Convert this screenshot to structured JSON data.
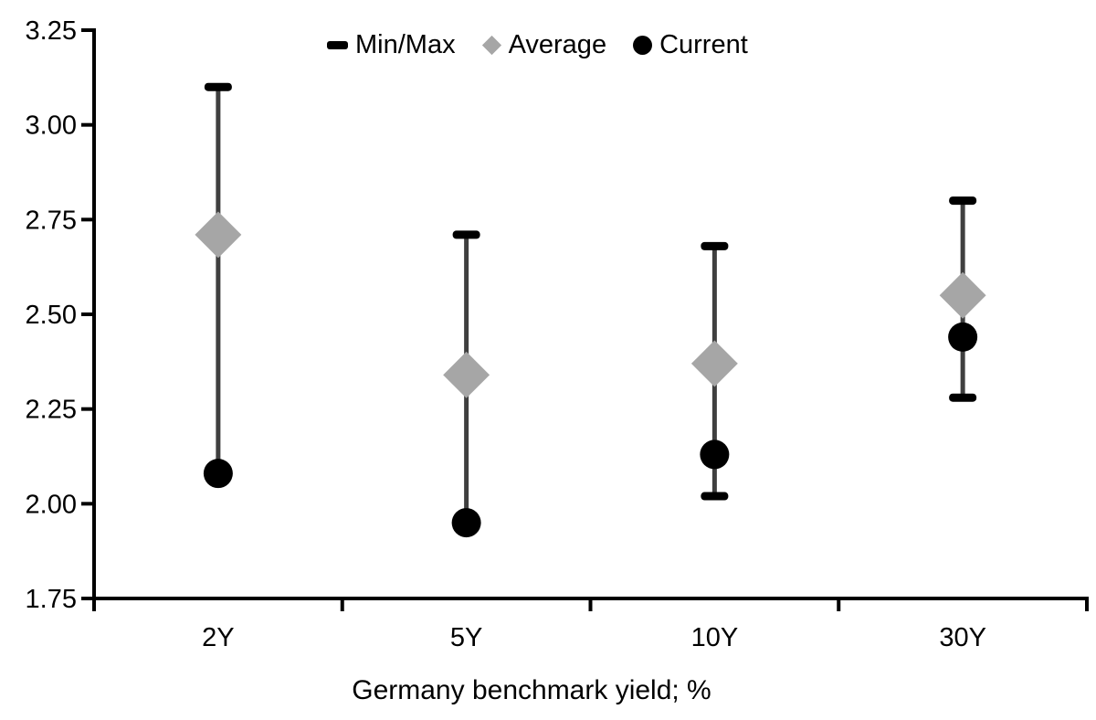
{
  "chart_data": {
    "type": "scatter",
    "subtype": "min-max range bars with average and current markers",
    "title": "",
    "xlabel": "Germany benchmark yield; %",
    "ylabel": "",
    "categories": [
      "2Y",
      "5Y",
      "10Y",
      "30Y"
    ],
    "series": [
      {
        "name": "Min/Max",
        "marker": "dash",
        "min": [
          2.08,
          1.95,
          2.02,
          2.28
        ],
        "max": [
          3.1,
          2.71,
          2.68,
          2.8
        ]
      },
      {
        "name": "Average",
        "marker": "diamond",
        "values": [
          2.71,
          2.34,
          2.37,
          2.55
        ]
      },
      {
        "name": "Current",
        "marker": "circle",
        "values": [
          2.08,
          1.95,
          2.13,
          2.44
        ]
      }
    ],
    "ylim": [
      1.75,
      3.25
    ],
    "ytick_step": 0.25,
    "ytick_labels": [
      "3.25",
      "3.00",
      "2.75",
      "2.50",
      "2.25",
      "2.00",
      "1.75"
    ],
    "grid": false,
    "legend_position": "top-center",
    "notes": "For 2Y and 5Y the minimum cap coincides with the Current marker (range bottom ends at the black circle)"
  },
  "colors": {
    "background": "#ffffff",
    "axis": "#000000",
    "text": "#000000",
    "range_line": "#3f3f3f",
    "cap": "#000000",
    "average_marker": "#a6a6a6",
    "current_marker": "#000000"
  }
}
